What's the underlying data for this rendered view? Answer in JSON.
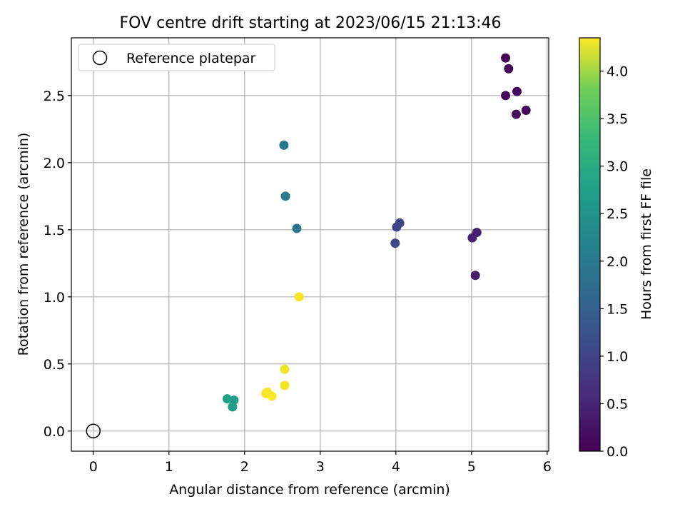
{
  "chart_data": {
    "type": "scatter",
    "title": "FOV centre drift starting at 2023/06/15 21:13:46",
    "xlabel": "Angular distance from reference (arcmin)",
    "ylabel": "Rotation from reference (arcmin)",
    "xlim": [
      -0.29,
      6.02
    ],
    "ylim": [
      -0.15,
      2.93
    ],
    "xticks": [
      0,
      1,
      2,
      3,
      4,
      5,
      6
    ],
    "xtick_labels": [
      "0",
      "1",
      "2",
      "3",
      "4",
      "5",
      "6"
    ],
    "yticks": [
      0.0,
      0.5,
      1.0,
      1.5,
      2.0,
      2.5
    ],
    "ytick_labels": [
      "0.0",
      "0.5",
      "1.0",
      "1.5",
      "2.0",
      "2.5"
    ],
    "grid": true,
    "legend": {
      "placement": "upper-left",
      "entries": [
        {
          "label": "Reference platepar",
          "marker": "open-circle"
        }
      ]
    },
    "reference_point": {
      "x": 0,
      "y": 0
    },
    "colorbar": {
      "label": "Hours from first FF file",
      "range": [
        0.0,
        4.35
      ],
      "ticks": [
        0.0,
        0.5,
        1.0,
        1.5,
        2.0,
        2.5,
        3.0,
        3.5,
        4.0
      ],
      "tick_labels": [
        "0.0",
        "0.5",
        "1.0",
        "1.5",
        "2.0",
        "2.5",
        "3.0",
        "3.5",
        "4.0"
      ],
      "colormap": "viridis"
    },
    "points": [
      {
        "x": 5.45,
        "y": 2.78,
        "c": 0.02
      },
      {
        "x": 5.49,
        "y": 2.7,
        "c": 0.05
      },
      {
        "x": 5.45,
        "y": 2.5,
        "c": 0.07
      },
      {
        "x": 5.6,
        "y": 2.53,
        "c": 0.08
      },
      {
        "x": 5.72,
        "y": 2.39,
        "c": 0.1
      },
      {
        "x": 5.59,
        "y": 2.36,
        "c": 0.12
      },
      {
        "x": 5.01,
        "y": 1.44,
        "c": 0.4
      },
      {
        "x": 5.07,
        "y": 1.48,
        "c": 0.38
      },
      {
        "x": 5.05,
        "y": 1.16,
        "c": 0.35
      },
      {
        "x": 4.05,
        "y": 1.55,
        "c": 0.9
      },
      {
        "x": 4.01,
        "y": 1.52,
        "c": 0.92
      },
      {
        "x": 3.99,
        "y": 1.4,
        "c": 0.95
      },
      {
        "x": 2.52,
        "y": 2.13,
        "c": 1.75
      },
      {
        "x": 2.54,
        "y": 1.75,
        "c": 1.72
      },
      {
        "x": 2.69,
        "y": 1.51,
        "c": 1.68
      },
      {
        "x": 1.77,
        "y": 0.24,
        "c": 2.45
      },
      {
        "x": 1.86,
        "y": 0.23,
        "c": 2.4
      },
      {
        "x": 1.84,
        "y": 0.18,
        "c": 2.42
      },
      {
        "x": 2.72,
        "y": 1.0,
        "c": 4.3
      },
      {
        "x": 2.53,
        "y": 0.46,
        "c": 4.25
      },
      {
        "x": 2.53,
        "y": 0.34,
        "c": 4.28
      },
      {
        "x": 2.28,
        "y": 0.28,
        "c": 4.32
      },
      {
        "x": 2.3,
        "y": 0.29,
        "c": 4.3
      },
      {
        "x": 2.36,
        "y": 0.26,
        "c": 4.33
      }
    ]
  }
}
